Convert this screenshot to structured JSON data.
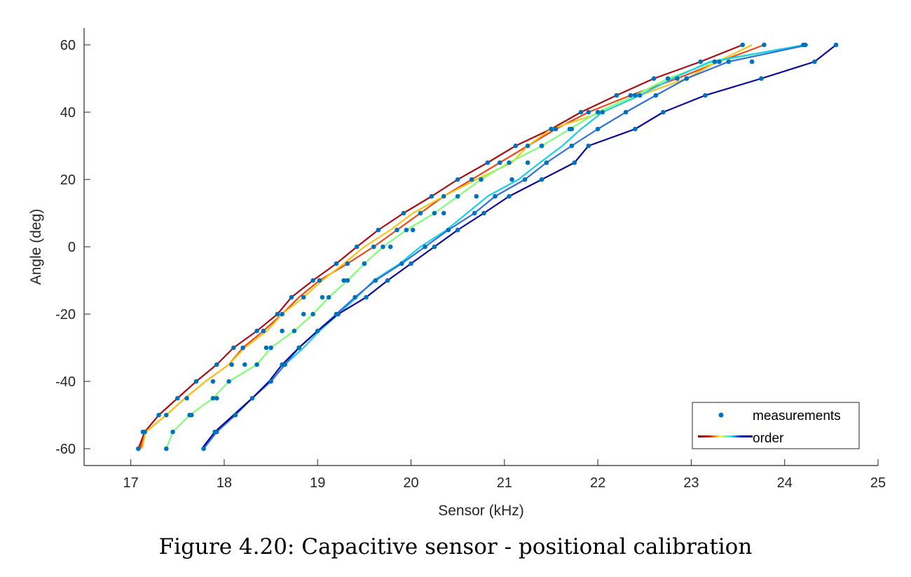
{
  "caption": "Figure 4.20: Capacitive sensor - positional calibration",
  "chart_data": {
    "type": "line",
    "title": "",
    "xlabel": "Sensor (kHz)",
    "ylabel": "Angle (deg)",
    "xlim": [
      16.5,
      25
    ],
    "ylim": [
      -65,
      65
    ],
    "xticks": [
      17,
      18,
      19,
      20,
      21,
      22,
      23,
      24,
      25
    ],
    "yticks": [
      -60,
      -40,
      -20,
      0,
      20,
      40,
      60
    ],
    "grid": false,
    "legend": {
      "position": "bottom-right",
      "entries": [
        {
          "label": "measurements",
          "marker": "dot",
          "color": "#0072BD"
        },
        {
          "label": "order",
          "marker": "gradient-line",
          "colors": [
            "#800000",
            "#FF0000",
            "#FFFF00",
            "#00FFFF",
            "#0000FF",
            "#00008F"
          ]
        }
      ]
    },
    "angles": [
      -60,
      -55,
      -50,
      -45,
      -40,
      -35,
      -30,
      -25,
      -20,
      -15,
      -10,
      -5,
      0,
      5,
      10,
      15,
      20,
      25,
      30,
      35,
      40,
      45,
      50,
      55,
      60
    ],
    "series": [
      {
        "color": "#A50F15",
        "x": [
          17.08,
          17.15,
          17.3,
          17.5,
          17.7,
          17.92,
          18.1,
          18.35,
          18.57,
          18.72,
          18.95,
          19.2,
          19.42,
          19.65,
          19.92,
          20.22,
          20.5,
          20.82,
          21.12,
          21.5,
          21.82,
          22.2,
          22.6,
          23.1,
          23.55
        ]
      },
      {
        "color": "#E84A1B",
        "x": [
          17.1,
          17.16,
          17.38,
          17.58,
          17.8,
          18.05,
          18.2,
          18.42,
          18.62,
          18.8,
          19.02,
          19.32,
          19.6,
          19.85,
          20.1,
          20.35,
          20.65,
          20.95,
          21.25,
          21.55,
          21.9,
          22.35,
          22.85,
          23.3,
          23.78
        ]
      },
      {
        "color": "#F5C518",
        "x": [
          17.12,
          17.16,
          17.38,
          17.58,
          17.8,
          18.05,
          18.22,
          18.46,
          18.62,
          18.85,
          19.05,
          19.28,
          19.5,
          19.78,
          20.02,
          20.35,
          20.7,
          21.08,
          21.25,
          21.5,
          22.05,
          22.45,
          22.95,
          23.28,
          23.65
        ]
      },
      {
        "color": "#7FFF7A",
        "x": [
          17.38,
          17.45,
          17.63,
          17.88,
          18.05,
          18.35,
          18.5,
          18.75,
          18.95,
          19.12,
          19.32,
          19.5,
          19.7,
          19.95,
          20.25,
          20.5,
          20.75,
          21.05,
          21.4,
          21.7,
          22.0,
          22.4,
          22.75,
          23.25,
          24.2
        ]
      },
      {
        "color": "#1ACFE8",
        "x": [
          17.78,
          17.92,
          18.1,
          18.3,
          18.5,
          18.65,
          18.85,
          19.02,
          19.22,
          19.42,
          19.6,
          19.88,
          20.1,
          20.38,
          20.6,
          20.82,
          21.15,
          21.38,
          21.62,
          21.82,
          22.05,
          22.45,
          22.8,
          23.2,
          24.22
        ]
      },
      {
        "color": "#2F6FE0",
        "x": [
          17.78,
          17.92,
          18.12,
          18.3,
          18.5,
          18.65,
          18.8,
          19.0,
          19.2,
          19.4,
          19.62,
          19.9,
          20.15,
          20.4,
          20.68,
          20.9,
          21.22,
          21.45,
          21.72,
          22.0,
          22.3,
          22.62,
          22.95,
          23.4,
          24.25
        ]
      },
      {
        "color": "#0A0A9B",
        "x": [
          17.76,
          17.9,
          18.1,
          18.3,
          18.48,
          18.62,
          18.8,
          19.0,
          19.22,
          19.52,
          19.75,
          20.0,
          20.25,
          20.5,
          20.78,
          21.05,
          21.4,
          21.75,
          21.9,
          22.4,
          22.7,
          23.15,
          23.75,
          24.32,
          24.55
        ]
      }
    ],
    "measurements": {
      "color": "#0072BD",
      "points": [
        [
          17.08,
          -60
        ],
        [
          17.13,
          -55
        ],
        [
          17.15,
          -55
        ],
        [
          17.3,
          -50
        ],
        [
          17.5,
          -45
        ],
        [
          17.7,
          -40
        ],
        [
          17.92,
          -35
        ],
        [
          18.1,
          -30
        ],
        [
          18.35,
          -25
        ],
        [
          18.57,
          -20
        ],
        [
          18.72,
          -15
        ],
        [
          18.95,
          -10
        ],
        [
          19.2,
          -5
        ],
        [
          19.42,
          0
        ],
        [
          19.65,
          5
        ],
        [
          19.92,
          10
        ],
        [
          20.22,
          15
        ],
        [
          20.5,
          20
        ],
        [
          20.82,
          25
        ],
        [
          21.12,
          30
        ],
        [
          21.5,
          35
        ],
        [
          21.82,
          40
        ],
        [
          22.2,
          45
        ],
        [
          22.6,
          50
        ],
        [
          23.1,
          55
        ],
        [
          23.55,
          60
        ],
        [
          17.38,
          -50
        ],
        [
          17.6,
          -45
        ],
        [
          17.88,
          -40
        ],
        [
          18.08,
          -35
        ],
        [
          18.2,
          -30
        ],
        [
          18.42,
          -25
        ],
        [
          18.62,
          -20
        ],
        [
          18.85,
          -15
        ],
        [
          19.02,
          -10
        ],
        [
          19.32,
          -5
        ],
        [
          19.6,
          0
        ],
        [
          19.85,
          5
        ],
        [
          20.1,
          10
        ],
        [
          20.35,
          15
        ],
        [
          20.65,
          20
        ],
        [
          20.95,
          25
        ],
        [
          21.25,
          30
        ],
        [
          21.55,
          35
        ],
        [
          21.9,
          40
        ],
        [
          22.35,
          45
        ],
        [
          22.85,
          50
        ],
        [
          23.3,
          55
        ],
        [
          23.78,
          60
        ],
        [
          18.05,
          -40
        ],
        [
          18.22,
          -35
        ],
        [
          18.45,
          -30
        ],
        [
          18.62,
          -25
        ],
        [
          18.85,
          -20
        ],
        [
          19.05,
          -15
        ],
        [
          19.28,
          -10
        ],
        [
          19.5,
          -5
        ],
        [
          19.78,
          0
        ],
        [
          20.02,
          5
        ],
        [
          20.35,
          10
        ],
        [
          20.7,
          15
        ],
        [
          21.08,
          20
        ],
        [
          21.25,
          25
        ],
        [
          21.4,
          30
        ],
        [
          21.72,
          35
        ],
        [
          22.05,
          40
        ],
        [
          22.45,
          45
        ],
        [
          22.95,
          50
        ],
        [
          23.65,
          55
        ],
        [
          17.38,
          -60
        ],
        [
          17.45,
          -55
        ],
        [
          17.63,
          -50
        ],
        [
          17.65,
          -50
        ],
        [
          17.88,
          -45
        ],
        [
          17.92,
          -45
        ],
        [
          18.35,
          -35
        ],
        [
          18.5,
          -30
        ],
        [
          18.75,
          -25
        ],
        [
          18.95,
          -20
        ],
        [
          19.12,
          -15
        ],
        [
          19.32,
          -10
        ],
        [
          19.5,
          -5
        ],
        [
          19.7,
          0
        ],
        [
          19.95,
          5
        ],
        [
          20.25,
          10
        ],
        [
          20.5,
          15
        ],
        [
          20.75,
          20
        ],
        [
          21.05,
          25
        ],
        [
          21.4,
          30
        ],
        [
          21.7,
          35
        ],
        [
          22.0,
          40
        ],
        [
          22.4,
          45
        ],
        [
          22.75,
          50
        ],
        [
          23.25,
          55
        ],
        [
          24.2,
          60
        ],
        [
          17.78,
          -60
        ],
        [
          17.92,
          -55
        ],
        [
          18.12,
          -50
        ],
        [
          18.3,
          -45
        ],
        [
          18.5,
          -40
        ],
        [
          18.65,
          -35
        ],
        [
          18.8,
          -30
        ],
        [
          19.0,
          -25
        ],
        [
          19.2,
          -20
        ],
        [
          19.4,
          -15
        ],
        [
          19.62,
          -10
        ],
        [
          19.9,
          -5
        ],
        [
          20.15,
          0
        ],
        [
          20.4,
          5
        ],
        [
          20.68,
          10
        ],
        [
          20.9,
          15
        ],
        [
          21.22,
          20
        ],
        [
          21.45,
          25
        ],
        [
          21.72,
          30
        ],
        [
          22.0,
          35
        ],
        [
          22.3,
          40
        ],
        [
          22.62,
          45
        ],
        [
          22.95,
          50
        ],
        [
          23.4,
          55
        ],
        [
          24.22,
          60
        ],
        [
          17.9,
          -55
        ],
        [
          18.62,
          -35
        ],
        [
          18.8,
          -30
        ],
        [
          19.22,
          -20
        ],
        [
          19.52,
          -15
        ],
        [
          19.75,
          -10
        ],
        [
          20.0,
          -5
        ],
        [
          20.25,
          0
        ],
        [
          20.5,
          5
        ],
        [
          20.78,
          10
        ],
        [
          21.05,
          15
        ],
        [
          21.4,
          20
        ],
        [
          21.75,
          25
        ],
        [
          21.9,
          30
        ],
        [
          22.4,
          35
        ],
        [
          22.7,
          40
        ],
        [
          23.15,
          45
        ],
        [
          23.75,
          50
        ],
        [
          24.32,
          55
        ],
        [
          24.55,
          60
        ]
      ]
    }
  }
}
